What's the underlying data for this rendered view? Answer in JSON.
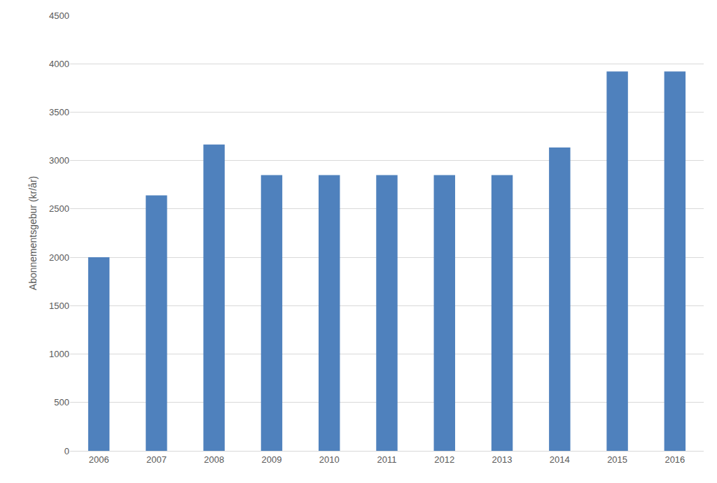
{
  "chart_data": {
    "type": "bar",
    "y_label": "Abonnementsgebur (kr/år)",
    "categories": [
      "2006",
      "2007",
      "2008",
      "2009",
      "2010",
      "2011",
      "2012",
      "2013",
      "2014",
      "2015",
      "2016"
    ],
    "values": [
      2000,
      2640,
      3165,
      2850,
      2850,
      2850,
      2850,
      2850,
      3135,
      3920,
      3920
    ],
    "color": "#4f81bd",
    "ylim": [
      0,
      4500
    ],
    "yticks": [
      0,
      500,
      1000,
      1500,
      2000,
      2500,
      3000,
      3500,
      4000,
      4500
    ],
    "grid": true
  }
}
